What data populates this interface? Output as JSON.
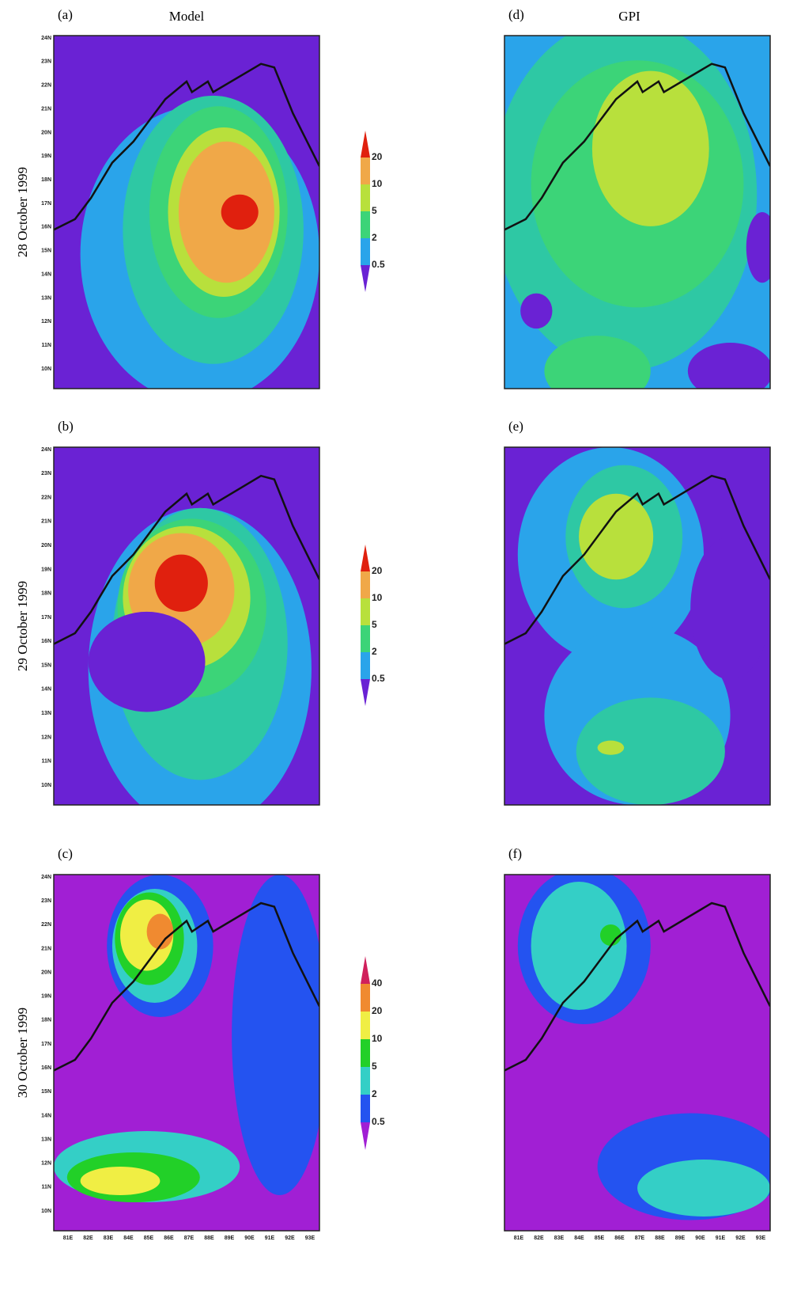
{
  "columns": [
    {
      "title": "Model"
    },
    {
      "title": "GPI"
    }
  ],
  "rows": [
    {
      "label": "28 October 1999",
      "panels": [
        "(a)",
        "(d)"
      ],
      "colorbar": [
        "20",
        "10",
        "5",
        "2",
        "0.5"
      ]
    },
    {
      "label": "29 October 1999",
      "panels": [
        "(b)",
        "(e)"
      ],
      "colorbar": [
        "20",
        "10",
        "5",
        "2",
        "0.5"
      ]
    },
    {
      "label": "30 October 1999",
      "panels": [
        "(c)",
        "(f)"
      ],
      "colorbar": [
        "40",
        "20",
        "10",
        "5",
        "2",
        "0.5"
      ]
    }
  ],
  "lat_ticks": [
    "24N",
    "23N",
    "22N",
    "21N",
    "20N",
    "19N",
    "18N",
    "17N",
    "16N",
    "15N",
    "14N",
    "13N",
    "12N",
    "11N",
    "10N"
  ],
  "lon_ticks": [
    "81E",
    "82E",
    "83E",
    "84E",
    "85E",
    "86E",
    "87E",
    "88E",
    "89E",
    "90E",
    "91E",
    "92E",
    "93E"
  ]
}
